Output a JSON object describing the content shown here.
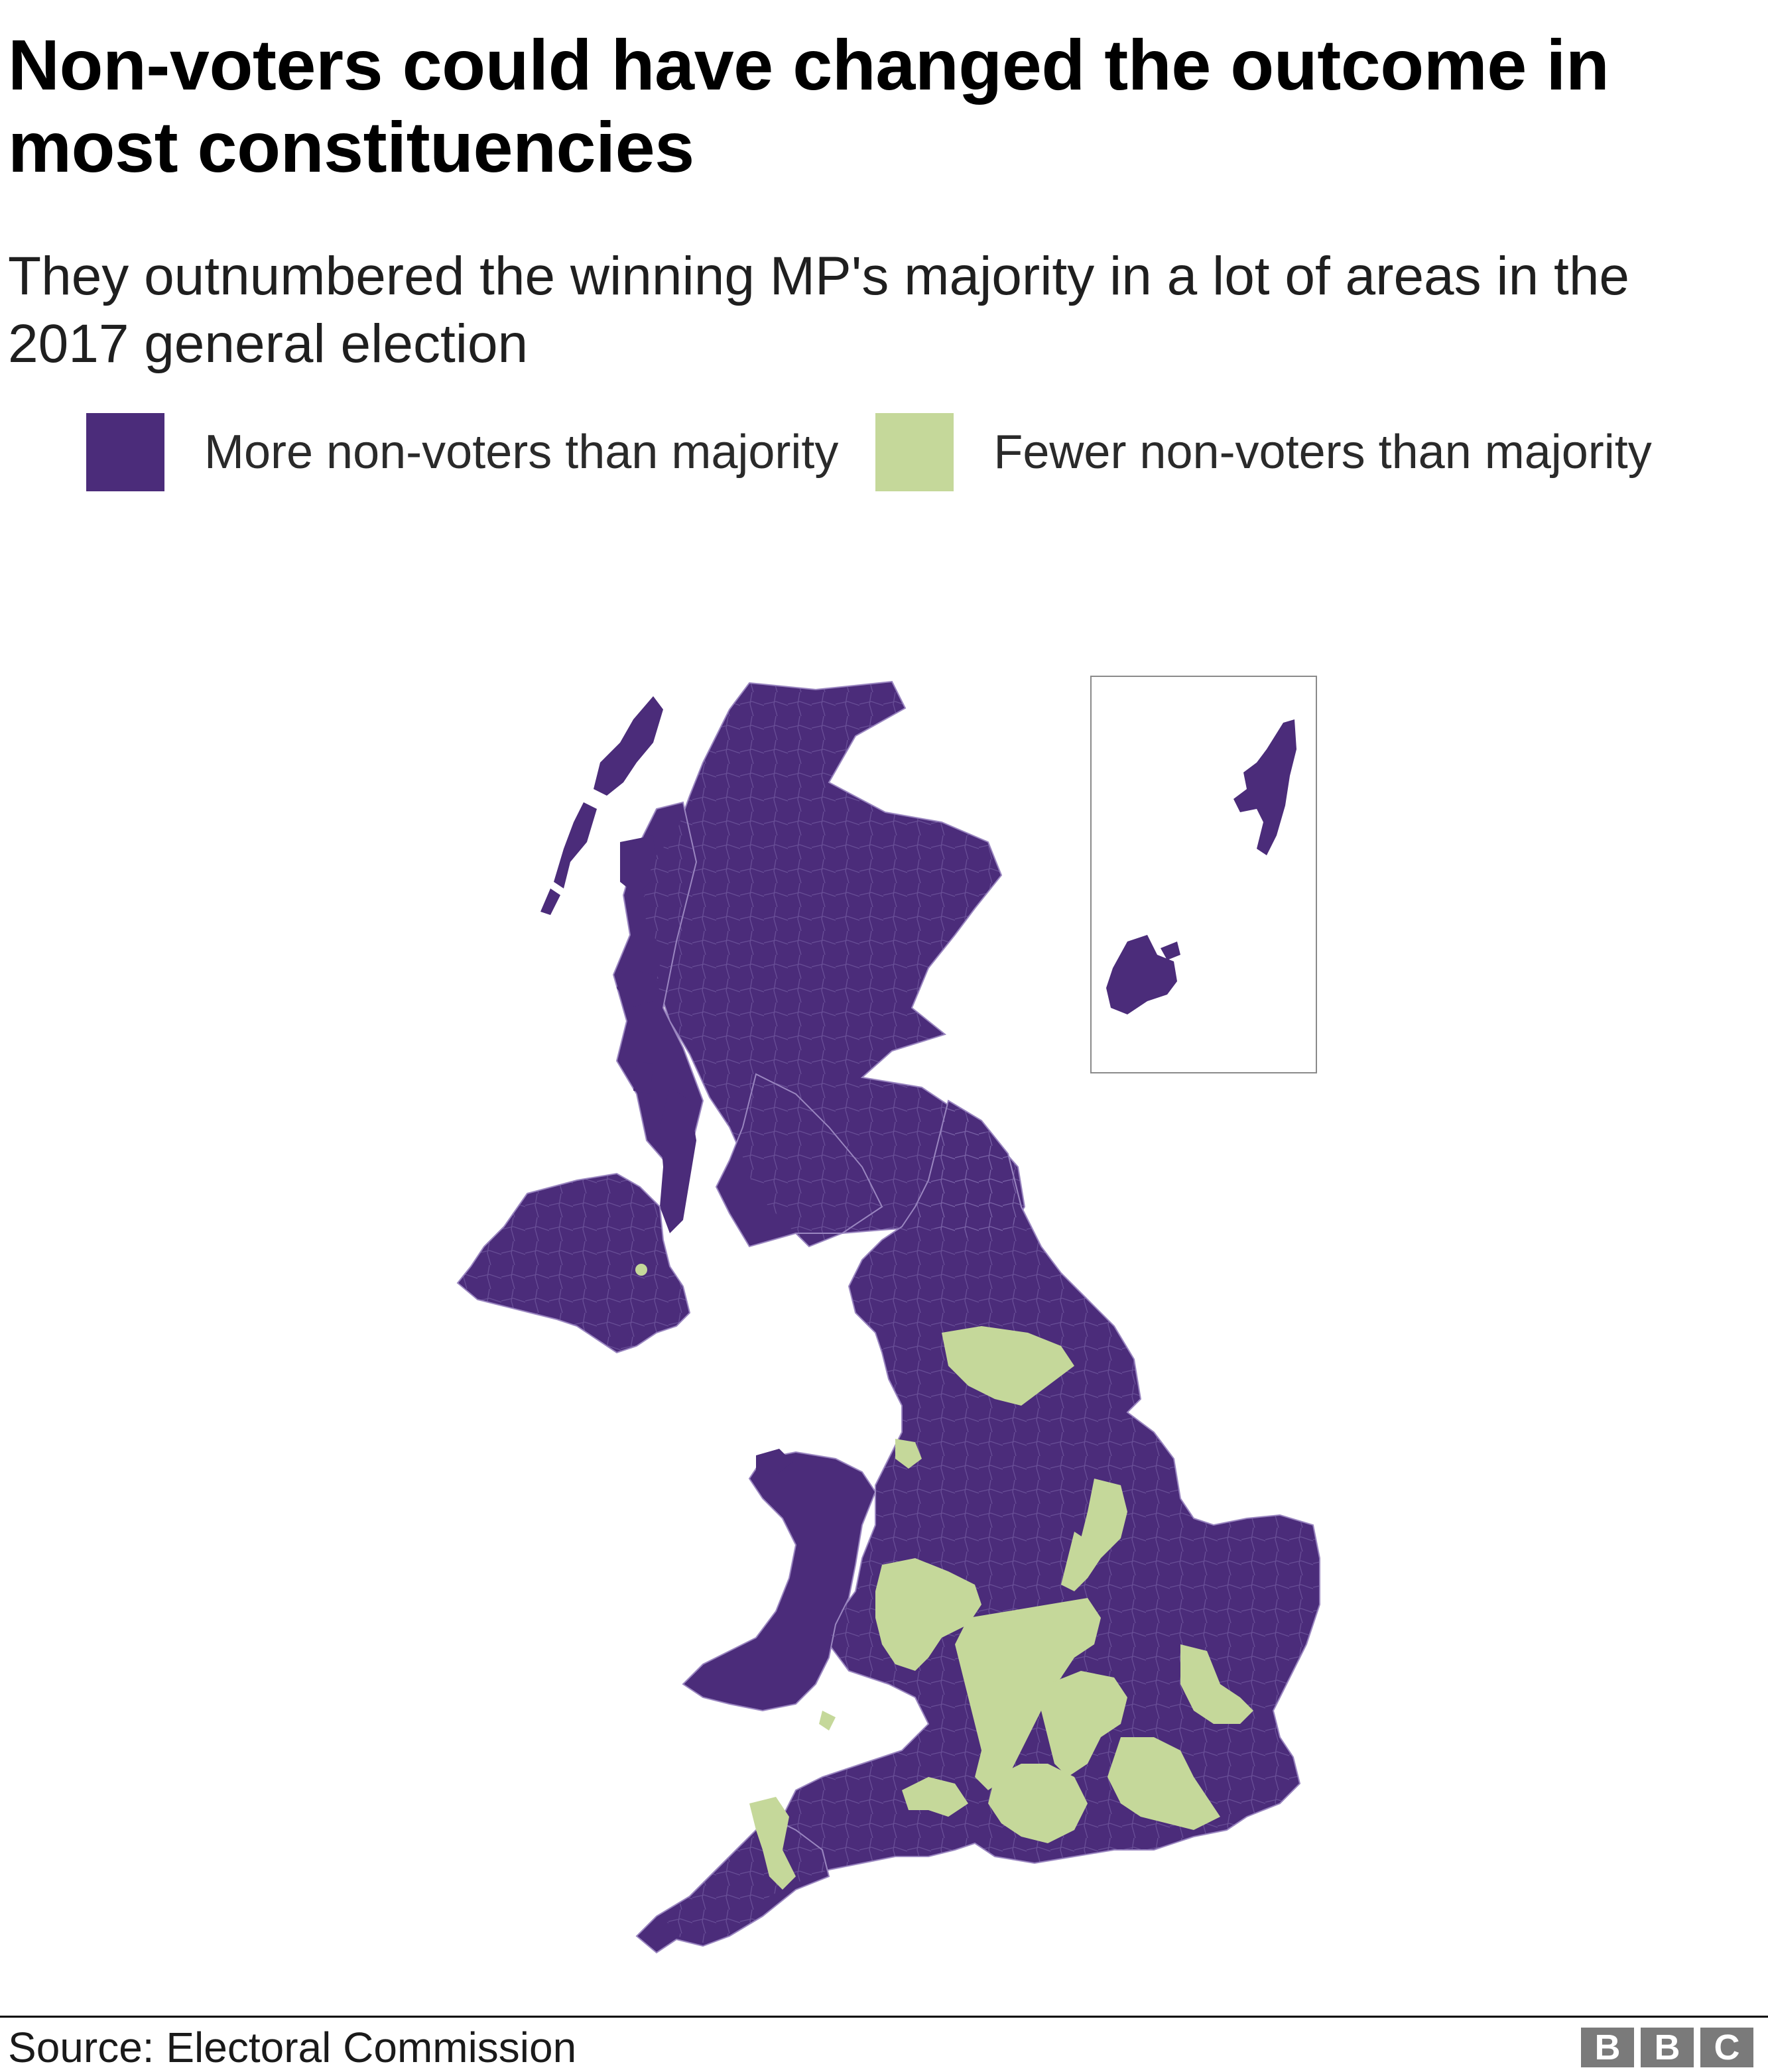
{
  "header": {
    "title": "Non-voters could have changed the outcome in most constituencies",
    "subtitle": "They outnumbered the winning MP's majority in a lot of areas in the 2017 general election"
  },
  "legend": {
    "items": [
      {
        "label": "More non-voters than majority",
        "color": "#4b2c7a"
      },
      {
        "label": "Fewer non-voters than majority",
        "color": "#c5d89a"
      }
    ]
  },
  "map": {
    "colors": {
      "more": "#4b2c7a",
      "fewer": "#c5d89a",
      "boundary": "#9a86c0",
      "inset_frame": "#8a8a8a"
    },
    "regions_described": [
      "Scotland",
      "Northern Ireland",
      "England",
      "Wales",
      "Orkney and Shetland inset"
    ]
  },
  "footer": {
    "source": "Source: Electoral Commission",
    "logo": [
      "B",
      "B",
      "C"
    ]
  }
}
